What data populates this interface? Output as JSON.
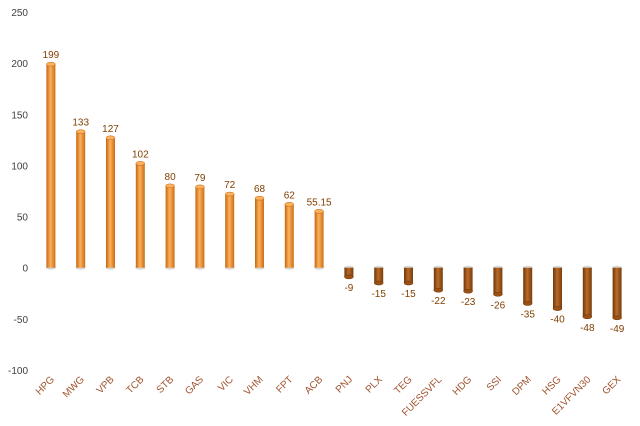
{
  "chart_data": {
    "type": "bar",
    "categories": [
      "HPG",
      "MWG",
      "VPB",
      "TCB",
      "STB",
      "GAS",
      "VIC",
      "VHM",
      "FPT",
      "ACB",
      "PNJ",
      "PLX",
      "TEG",
      "FUESSVFL",
      "HDG",
      "SSI",
      "DPM",
      "HSG",
      "E1VFVN30",
      "GEX"
    ],
    "values": [
      199,
      133,
      127,
      102,
      80,
      79,
      72,
      68,
      62,
      55.15,
      -9,
      -15,
      -15,
      -22,
      -23,
      -26,
      -35,
      -40,
      -48,
      -49
    ],
    "data_labels": [
      "199",
      "133",
      "127",
      "102",
      "80",
      "79",
      "72",
      "68",
      "62",
      "55.15",
      "-9",
      "-15",
      "-15",
      "-22",
      "-23",
      "-26",
      "-35",
      "-40",
      "-48",
      "-49"
    ],
    "yticks": [
      -100,
      -50,
      0,
      50,
      100,
      150,
      200,
      250
    ],
    "ylim": [
      -100,
      250
    ],
    "grid": false,
    "legend": false,
    "colors": {
      "positive_light": "#f9b260",
      "positive_mid": "#ef8a24",
      "positive_dark": "#c8640a",
      "negative_light": "#b86a2a",
      "negative_mid": "#9a5214",
      "negative_dark": "#6e3608",
      "axis": "#bfbfbf",
      "base_shadow": "#d9d9d9"
    }
  }
}
